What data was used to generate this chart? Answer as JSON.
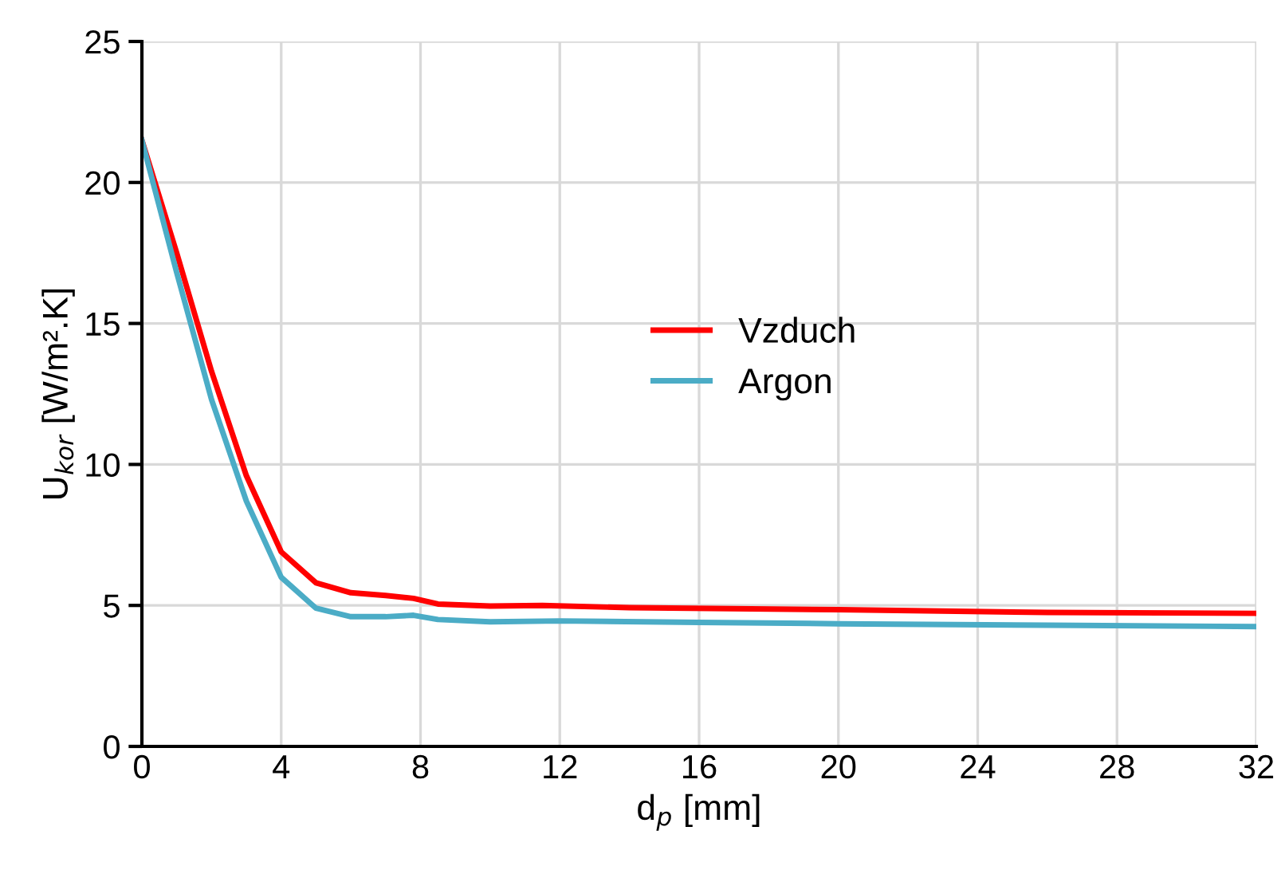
{
  "chart_data": {
    "type": "line",
    "xlabel": "d$_{p}$ [mm]",
    "ylabel": "U$_{kor}$ [W/m².K]",
    "xlim": [
      0,
      32
    ],
    "xticks": [
      0,
      4,
      8,
      12,
      16,
      20,
      24,
      28,
      32
    ],
    "ylim": [
      0,
      25
    ],
    "yticks": [
      0,
      5,
      10,
      15,
      20,
      25
    ],
    "grid": true,
    "legend": "center",
    "marker": "none",
    "line_style": "solid",
    "series": [
      {
        "name": "Vzduch",
        "color": "#ff0000",
        "x": [
          0,
          1,
          2,
          3,
          4,
          5,
          6,
          7,
          7.8,
          8.5,
          10,
          11.5,
          14,
          20,
          26,
          32
        ],
        "values": [
          21.5,
          17.5,
          13.3,
          9.6,
          6.9,
          5.8,
          5.45,
          5.35,
          5.25,
          5.05,
          4.98,
          5.0,
          4.92,
          4.85,
          4.75,
          4.72
        ]
      },
      {
        "name": "Argon",
        "color": "#4bacc6",
        "x": [
          0,
          1,
          2,
          3,
          4,
          5,
          6,
          7,
          7.8,
          8.5,
          10,
          12,
          16,
          20,
          26,
          32
        ],
        "values": [
          21.5,
          16.8,
          12.3,
          8.7,
          6.0,
          4.9,
          4.6,
          4.6,
          4.65,
          4.5,
          4.42,
          4.45,
          4.4,
          4.35,
          4.3,
          4.25
        ]
      }
    ]
  }
}
